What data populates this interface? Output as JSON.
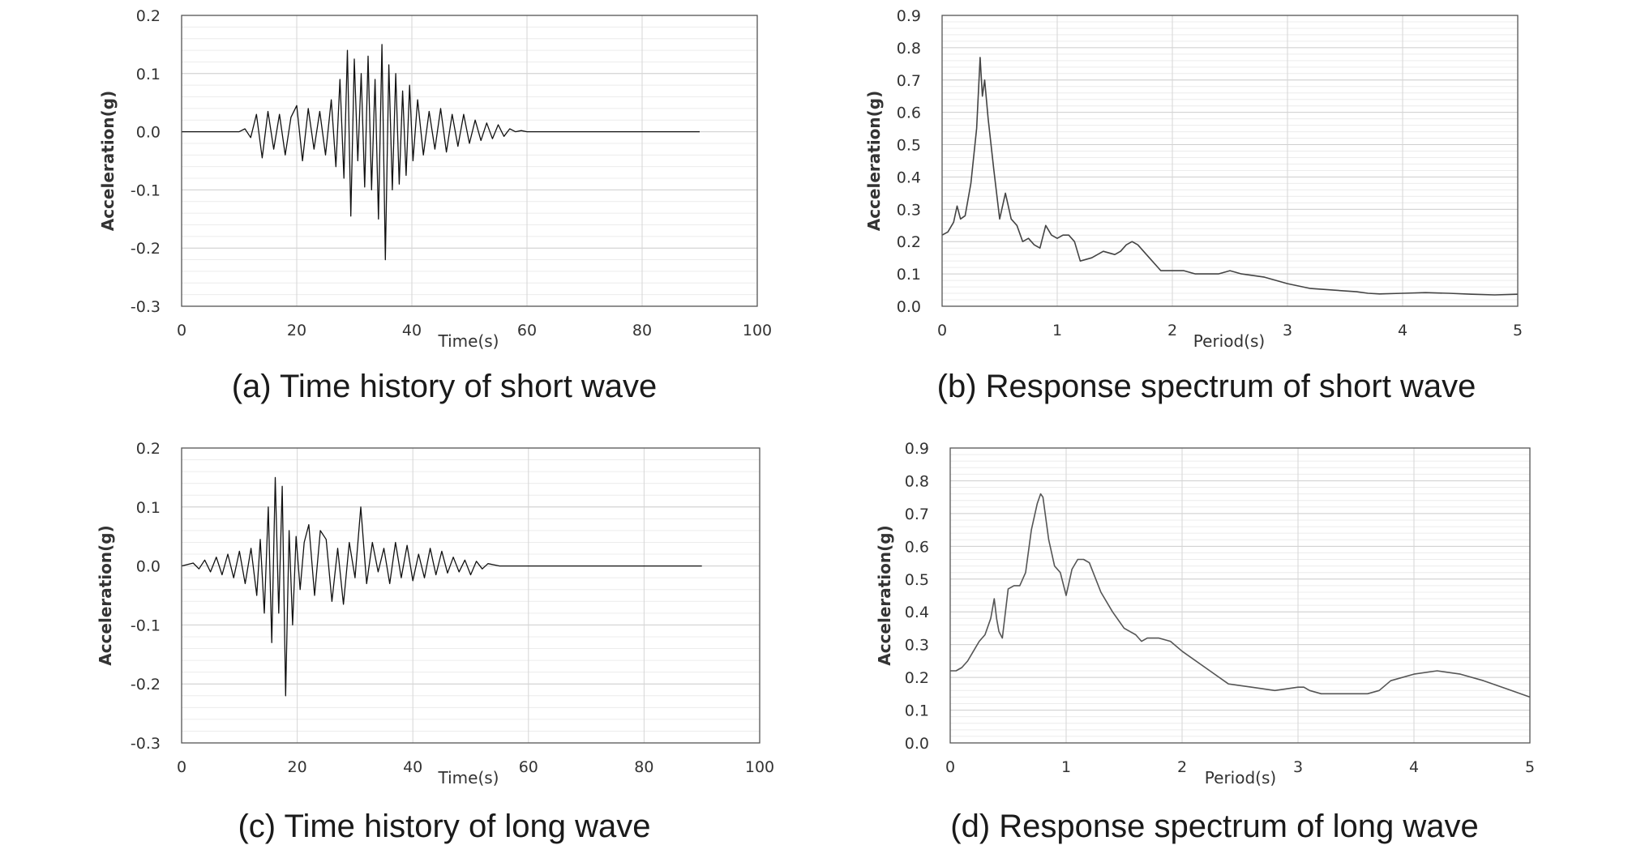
{
  "chart_data": [
    {
      "type": "line",
      "caption": "(a) Time history of short wave",
      "xlabel": "Time(s)",
      "ylabel": "Acceleration(g)",
      "xlim": [
        0,
        100
      ],
      "ylim": [
        -0.3,
        0.2
      ],
      "xticks": [
        "0",
        "20",
        "40",
        "60",
        "80",
        "100"
      ],
      "yticks": [
        "0.2",
        "0.1",
        "0.0",
        "-0.1",
        "-0.2",
        "-0.3"
      ],
      "grid": true,
      "series": [
        {
          "color": "#111111",
          "line_width": 1.3,
          "x": [
            0,
            10,
            11,
            12,
            13,
            14,
            15,
            16,
            17,
            18,
            19,
            20,
            21,
            22,
            23,
            24,
            25,
            26,
            26.8,
            27.5,
            28.2,
            28.8,
            29.4,
            30,
            30.6,
            31.2,
            31.8,
            32.4,
            33,
            33.6,
            34.2,
            34.8,
            35.4,
            36,
            36.6,
            37.2,
            37.8,
            38.4,
            39,
            39.6,
            40.2,
            41,
            42,
            43,
            44,
            45,
            46,
            47,
            48,
            49,
            50,
            51,
            52,
            53,
            54,
            55,
            56,
            57,
            58,
            59,
            60,
            90
          ],
          "y": [
            0,
            0,
            0.005,
            -0.01,
            0.03,
            -0.045,
            0.035,
            -0.03,
            0.03,
            -0.04,
            0.025,
            0.045,
            -0.05,
            0.04,
            -0.03,
            0.035,
            -0.04,
            0.055,
            -0.06,
            0.09,
            -0.08,
            0.14,
            -0.145,
            0.125,
            -0.05,
            0.1,
            -0.095,
            0.13,
            -0.1,
            0.09,
            -0.15,
            0.15,
            -0.22,
            0.115,
            -0.1,
            0.1,
            -0.09,
            0.07,
            -0.075,
            0.08,
            -0.05,
            0.055,
            -0.04,
            0.035,
            -0.03,
            0.04,
            -0.035,
            0.03,
            -0.025,
            0.03,
            -0.02,
            0.02,
            -0.015,
            0.015,
            -0.012,
            0.012,
            -0.008,
            0.005,
            0,
            0.002,
            0,
            0
          ]
        }
      ]
    },
    {
      "type": "line",
      "caption": "(b) Response spectrum of short wave",
      "xlabel": "Period(s)",
      "ylabel": "Acceleration(g)",
      "xlim": [
        0,
        5
      ],
      "ylim": [
        0,
        0.9
      ],
      "xticks": [
        "0",
        "1",
        "2",
        "3",
        "4",
        "5"
      ],
      "yticks": [
        "0.9",
        "0.8",
        "0.7",
        "0.6",
        "0.5",
        "0.4",
        "0.3",
        "0.2",
        "0.1",
        "0.0"
      ],
      "grid": true,
      "series": [
        {
          "color": "#444444",
          "line_width": 1.6,
          "x": [
            0,
            0.05,
            0.1,
            0.13,
            0.16,
            0.2,
            0.25,
            0.3,
            0.33,
            0.35,
            0.37,
            0.4,
            0.45,
            0.5,
            0.55,
            0.6,
            0.65,
            0.7,
            0.75,
            0.8,
            0.85,
            0.9,
            0.95,
            1,
            1.05,
            1.1,
            1.15,
            1.2,
            1.3,
            1.4,
            1.5,
            1.55,
            1.6,
            1.65,
            1.7,
            1.8,
            1.9,
            2,
            2.1,
            2.2,
            2.3,
            2.4,
            2.5,
            2.6,
            2.8,
            3,
            3.2,
            3.4,
            3.6,
            3.7,
            3.8,
            4,
            4.2,
            4.4,
            4.6,
            4.8,
            5
          ],
          "y": [
            0.22,
            0.23,
            0.26,
            0.31,
            0.27,
            0.28,
            0.38,
            0.55,
            0.77,
            0.65,
            0.7,
            0.58,
            0.42,
            0.27,
            0.35,
            0.27,
            0.25,
            0.2,
            0.21,
            0.19,
            0.18,
            0.25,
            0.22,
            0.21,
            0.22,
            0.22,
            0.2,
            0.14,
            0.15,
            0.17,
            0.16,
            0.17,
            0.19,
            0.2,
            0.19,
            0.15,
            0.11,
            0.11,
            0.11,
            0.1,
            0.1,
            0.1,
            0.11,
            0.1,
            0.09,
            0.07,
            0.055,
            0.05,
            0.045,
            0.04,
            0.038,
            0.04,
            0.042,
            0.04,
            0.037,
            0.035,
            0.037
          ]
        }
      ]
    },
    {
      "type": "line",
      "caption": "(c) Time history of long wave",
      "xlabel": "Time(s)",
      "ylabel": "Acceleration(g)",
      "xlim": [
        0,
        100
      ],
      "ylim": [
        -0.3,
        0.2
      ],
      "xticks": [
        "0",
        "20",
        "40",
        "60",
        "80",
        "100"
      ],
      "yticks": [
        "0.2",
        "0.1",
        "0.0",
        "-0.1",
        "-0.2",
        "-0.3"
      ],
      "grid": true,
      "series": [
        {
          "color": "#111111",
          "line_width": 1.3,
          "x": [
            0,
            2,
            3,
            4,
            5,
            6,
            7,
            8,
            9,
            10,
            11,
            12,
            13,
            13.6,
            14.3,
            15,
            15.6,
            16.2,
            16.8,
            17.4,
            18,
            18.6,
            19.2,
            19.8,
            20.5,
            21.2,
            22,
            23,
            24,
            25,
            26,
            27,
            28,
            29,
            30,
            31,
            32,
            33,
            34,
            35,
            36,
            37,
            38,
            39,
            40,
            41,
            42,
            43,
            44,
            45,
            46,
            47,
            48,
            49,
            50,
            51,
            52,
            53,
            54,
            55,
            90
          ],
          "y": [
            0,
            0.005,
            -0.005,
            0.01,
            -0.01,
            0.015,
            -0.015,
            0.02,
            -0.02,
            0.025,
            -0.03,
            0.03,
            -0.05,
            0.045,
            -0.08,
            0.1,
            -0.13,
            0.15,
            -0.08,
            0.135,
            -0.22,
            0.06,
            -0.1,
            0.05,
            -0.04,
            0.04,
            0.07,
            -0.05,
            0.06,
            0.045,
            -0.06,
            0.03,
            -0.065,
            0.04,
            -0.02,
            0.1,
            -0.03,
            0.04,
            -0.01,
            0.03,
            -0.03,
            0.04,
            -0.02,
            0.035,
            -0.025,
            0.02,
            -0.02,
            0.03,
            -0.015,
            0.025,
            -0.012,
            0.015,
            -0.01,
            0.01,
            -0.015,
            0.008,
            -0.005,
            0.004,
            0.002,
            0,
            0
          ]
        }
      ]
    },
    {
      "type": "line",
      "caption": "(d) Response spectrum of long wave",
      "xlabel": "Period(s)",
      "ylabel": "Acceleration(g)",
      "xlim": [
        0,
        5
      ],
      "ylim": [
        0,
        0.9
      ],
      "xticks": [
        "0",
        "1",
        "2",
        "3",
        "4",
        "5"
      ],
      "yticks": [
        "0.9",
        "0.8",
        "0.7",
        "0.6",
        "0.5",
        "0.4",
        "0.3",
        "0.2",
        "0.1",
        "0.0"
      ],
      "grid": true,
      "series": [
        {
          "color": "#555555",
          "line_width": 1.6,
          "x": [
            0,
            0.05,
            0.1,
            0.15,
            0.2,
            0.25,
            0.3,
            0.35,
            0.38,
            0.4,
            0.42,
            0.45,
            0.5,
            0.55,
            0.6,
            0.65,
            0.7,
            0.75,
            0.78,
            0.8,
            0.85,
            0.9,
            0.95,
            1,
            1.05,
            1.1,
            1.15,
            1.2,
            1.3,
            1.4,
            1.5,
            1.6,
            1.65,
            1.7,
            1.8,
            1.9,
            2,
            2.2,
            2.4,
            2.6,
            2.8,
            3,
            3.05,
            3.1,
            3.2,
            3.4,
            3.6,
            3.7,
            3.8,
            4,
            4.2,
            4.4,
            4.6,
            4.8,
            5
          ],
          "y": [
            0.22,
            0.22,
            0.23,
            0.25,
            0.28,
            0.31,
            0.33,
            0.38,
            0.44,
            0.38,
            0.34,
            0.32,
            0.47,
            0.48,
            0.48,
            0.52,
            0.65,
            0.73,
            0.76,
            0.75,
            0.62,
            0.54,
            0.52,
            0.45,
            0.53,
            0.56,
            0.56,
            0.55,
            0.46,
            0.4,
            0.35,
            0.33,
            0.31,
            0.32,
            0.32,
            0.31,
            0.28,
            0.23,
            0.18,
            0.17,
            0.16,
            0.17,
            0.17,
            0.16,
            0.15,
            0.15,
            0.15,
            0.16,
            0.19,
            0.21,
            0.22,
            0.21,
            0.19,
            0.165,
            0.14
          ]
        }
      ]
    }
  ]
}
